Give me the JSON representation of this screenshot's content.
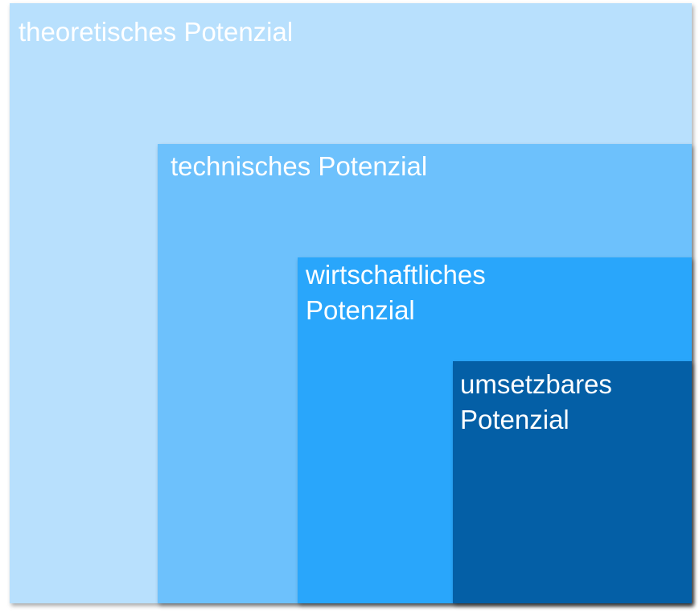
{
  "colors": {
    "theoretical": "#b8e0fd",
    "technical": "#6dc1fc",
    "economic": "#29a6fb",
    "feasible": "#045fa6"
  },
  "boxes": {
    "theoretical": {
      "label": "theoretisches Potenzial"
    },
    "technical": {
      "label": "technisches Potenzial"
    },
    "economic": {
      "label_line1": "wirtschaftliches",
      "label_line2": "Potenzial"
    },
    "feasible": {
      "label_line1": "umsetzbares",
      "label_line2": "Potenzial"
    }
  }
}
